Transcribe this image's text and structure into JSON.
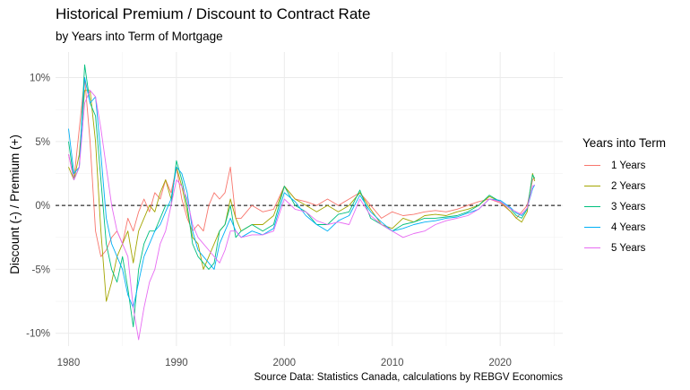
{
  "chart_data": {
    "type": "line",
    "title": "Historical Premium / Discount to Contract Rate",
    "subtitle": "by Years into Term of Mortgage",
    "caption": "Source Data: Statistics Canada, calculations by REBGV Economics",
    "xlabel": "",
    "ylabel": "Discount (-) / Premium (+)",
    "xlim": [
      1978.8,
      2025.8
    ],
    "ylim": [
      -11,
      12
    ],
    "x_ticks": [
      "1980",
      "1990",
      "2000",
      "2010",
      "2020"
    ],
    "x_tick_values": [
      1980,
      1990,
      2000,
      2010,
      2020
    ],
    "y_ticks": [
      "10%",
      "5%",
      "0%",
      "-5%",
      "-10%"
    ],
    "y_tick_values": [
      10,
      5,
      0,
      -5,
      -10
    ],
    "reference_line": {
      "y": 0,
      "style": "dashed"
    },
    "grid": true,
    "legend_title": "Years into Term",
    "legend_position": "right",
    "series": [
      {
        "name": "1 Years",
        "color": "#F8766D",
        "x": [
          1980,
          1980.5,
          1981,
          1981.5,
          1982,
          1982.5,
          1983,
          1983.5,
          1984,
          1984.5,
          1985,
          1985.5,
          1986,
          1986.5,
          1987,
          1987.5,
          1988,
          1988.5,
          1989,
          1989.5,
          1990,
          1990.5,
          1991,
          1991.5,
          1992,
          1992.5,
          1993,
          1993.5,
          1994,
          1994.5,
          1995,
          1995.5,
          1996,
          1997,
          1998,
          1999,
          2000,
          2001,
          2002,
          2003,
          2004,
          2005,
          2006,
          2007,
          2008,
          2009,
          2010,
          2011,
          2012,
          2013,
          2014,
          2015,
          2016,
          2017,
          2018,
          2019,
          2020,
          2021,
          2021.5,
          2022,
          2022.5,
          2023,
          2023.2
        ],
        "y": [
          4,
          2,
          6,
          10,
          5,
          -2,
          -4,
          -3.5,
          -2.5,
          -2,
          -3,
          -1,
          -2,
          -0.5,
          0.5,
          -0.5,
          1,
          0.5,
          2,
          1,
          3,
          0.5,
          -1,
          -2,
          -1.5,
          -2,
          0,
          1,
          0.5,
          1,
          3,
          -1,
          -1,
          0,
          -0.5,
          -0.3,
          1.5,
          0.5,
          0.3,
          0,
          0.5,
          0,
          0.5,
          1,
          0,
          -1,
          -0.5,
          -0.8,
          -0.7,
          -0.5,
          -0.4,
          -0.5,
          -0.3,
          0,
          0.3,
          0.5,
          0.2,
          -0.5,
          -1,
          -0.5,
          0,
          2,
          2.2
        ]
      },
      {
        "name": "2 Years",
        "color": "#A3A500",
        "x": [
          1980,
          1980.5,
          1981,
          1981.5,
          1982,
          1982.5,
          1983,
          1983.5,
          1984,
          1984.5,
          1985,
          1985.5,
          1986,
          1986.5,
          1987,
          1987.5,
          1988,
          1988.5,
          1989,
          1989.5,
          1990,
          1990.5,
          1991,
          1991.5,
          1992,
          1992.5,
          1993,
          1993.5,
          1994,
          1994.5,
          1995,
          1995.5,
          1996,
          1997,
          1998,
          1999,
          2000,
          2001,
          2002,
          2003,
          2004,
          2005,
          2006,
          2007,
          2008,
          2009,
          2010,
          2011,
          2012,
          2013,
          2014,
          2015,
          2016,
          2017,
          2018,
          2019,
          2020,
          2021,
          2021.5,
          2022,
          2022.5,
          2023,
          2023.2
        ],
        "y": [
          3,
          2,
          4,
          9,
          9,
          5,
          -2,
          -7.5,
          -6,
          -4,
          -3,
          -2,
          -4.5,
          -2,
          -1,
          0,
          -0.5,
          1,
          2,
          0.5,
          3,
          1.5,
          -0.5,
          -2.5,
          -3,
          -5,
          -4,
          -3,
          -2,
          -1.5,
          0.5,
          -1,
          -2,
          -1.5,
          -1.5,
          -0.8,
          1.5,
          0.5,
          0,
          -0.5,
          0,
          -0.5,
          0,
          1,
          -0.3,
          -1.5,
          -1.8,
          -1,
          -1.3,
          -0.8,
          -0.7,
          -0.8,
          -0.5,
          -0.3,
          0,
          0.7,
          0.3,
          -0.5,
          -1,
          -1.3,
          -0.5,
          2.5,
          1.9
        ]
      },
      {
        "name": "3 Years",
        "color": "#00BF7D",
        "x": [
          1980,
          1980.5,
          1981,
          1981.5,
          1982,
          1982.5,
          1983,
          1983.5,
          1984,
          1984.5,
          1985,
          1985.5,
          1986,
          1986.5,
          1987,
          1987.5,
          1988,
          1988.5,
          1989,
          1989.5,
          1990,
          1990.5,
          1991,
          1991.5,
          1992,
          1992.5,
          1993,
          1993.5,
          1994,
          1994.5,
          1995,
          1995.5,
          1996,
          1997,
          1998,
          1999,
          2000,
          2001,
          2002,
          2003,
          2004,
          2005,
          2006,
          2007,
          2008,
          2009,
          2010,
          2011,
          2012,
          2013,
          2014,
          2015,
          2016,
          2017,
          2018,
          2019,
          2020,
          2021,
          2021.5,
          2022,
          2022.5,
          2023,
          2023.2
        ],
        "y": [
          5,
          2,
          3,
          11,
          8,
          7,
          2,
          -3,
          -5,
          -6,
          -4,
          -6.5,
          -9.5,
          -5,
          -3,
          -2,
          -2,
          -1,
          0,
          0,
          3.5,
          2,
          0,
          -3,
          -4,
          -4.5,
          -5,
          -4.5,
          -2,
          -1.5,
          0,
          -2.5,
          -2,
          -1.5,
          -2,
          -1.5,
          1.5,
          0,
          -0.5,
          -1.5,
          -1.5,
          -0.7,
          -0.5,
          1.2,
          -1,
          -1.5,
          -2,
          -1.5,
          -1.3,
          -1,
          -1,
          -0.9,
          -0.8,
          -0.5,
          0,
          0.8,
          0.3,
          -0.3,
          -0.8,
          -1,
          -0.3,
          2.4,
          2.1
        ]
      },
      {
        "name": "4 Years",
        "color": "#00B0F6",
        "x": [
          1980,
          1980.5,
          1981,
          1981.5,
          1982,
          1982.5,
          1983,
          1983.5,
          1984,
          1984.5,
          1985,
          1985.5,
          1986,
          1986.5,
          1987,
          1987.5,
          1988,
          1988.5,
          1989,
          1989.5,
          1990,
          1990.5,
          1991,
          1991.5,
          1992,
          1992.5,
          1993,
          1993.5,
          1994,
          1994.5,
          1995,
          1995.5,
          1996,
          1997,
          1998,
          1999,
          2000,
          2001,
          2002,
          2003,
          2004,
          2005,
          2006,
          2007,
          2008,
          2009,
          2010,
          2011,
          2012,
          2013,
          2014,
          2015,
          2016,
          2017,
          2018,
          2019,
          2020,
          2021,
          2021.5,
          2022,
          2022.5,
          2023,
          2023.2
        ],
        "y": [
          6,
          2.5,
          3,
          10,
          8,
          8.5,
          4,
          -1,
          -3,
          -4,
          -5,
          -7,
          -8,
          -6,
          -4,
          -3,
          -2,
          -1.5,
          -0.5,
          0.5,
          3,
          2.5,
          1,
          -2,
          -3.5,
          -4,
          -4.5,
          -5,
          -3,
          -2,
          -1,
          -2,
          -2.5,
          -2,
          -2.3,
          -1.8,
          1,
          0.3,
          -0.8,
          -1.5,
          -2,
          -1.2,
          -0.8,
          0.8,
          -0.5,
          -1.3,
          -2,
          -1.8,
          -1.5,
          -1.3,
          -1.2,
          -1,
          -0.9,
          -0.6,
          -0.3,
          0.5,
          0.4,
          -0.2,
          -0.6,
          -0.8,
          -0.2,
          1.3,
          1.6
        ]
      },
      {
        "name": "5 Years",
        "color": "#E76BF3",
        "x": [
          1980,
          1980.5,
          1981,
          1981.5,
          1982,
          1982.5,
          1983,
          1983.5,
          1984,
          1984.5,
          1985,
          1985.5,
          1986,
          1986.5,
          1987,
          1987.5,
          1988,
          1988.5,
          1989,
          1989.5,
          1990,
          1990.5,
          1991,
          1991.5,
          1992,
          1992.5,
          1993,
          1993.5,
          1994,
          1994.5,
          1995,
          1995.5,
          1996,
          1997,
          1998,
          1999,
          2000,
          2001,
          2002,
          2003,
          2004,
          2005,
          2006,
          2007,
          2008,
          2009,
          2010,
          2011,
          2012,
          2013,
          2014,
          2015,
          2016,
          2017,
          2018,
          2019,
          2020,
          2021,
          2021.5,
          2022,
          2022.5,
          2023,
          2023.2
        ],
        "y": [
          4,
          2,
          3,
          8,
          9,
          8.5,
          6,
          3,
          0,
          -2,
          -3,
          -4,
          -8,
          -10.5,
          -8,
          -6,
          -5,
          -3,
          -2,
          0,
          2,
          1.5,
          0.5,
          -1.5,
          -2.5,
          -3,
          -3.5,
          -4,
          -4.5,
          -3.5,
          -2,
          -2,
          -2.5,
          -2.3,
          -2.3,
          -2,
          0.5,
          -0.3,
          -0.5,
          -1.2,
          -1.5,
          -1.3,
          -1.5,
          0.5,
          -0.8,
          -1.5,
          -2,
          -2.5,
          -2.2,
          -2,
          -1.5,
          -1.2,
          -1,
          -0.8,
          -0.3,
          0.5,
          0.3,
          -0.3,
          -0.5,
          -0.7,
          -0.2,
          1.5,
          1.6
        ]
      }
    ]
  }
}
